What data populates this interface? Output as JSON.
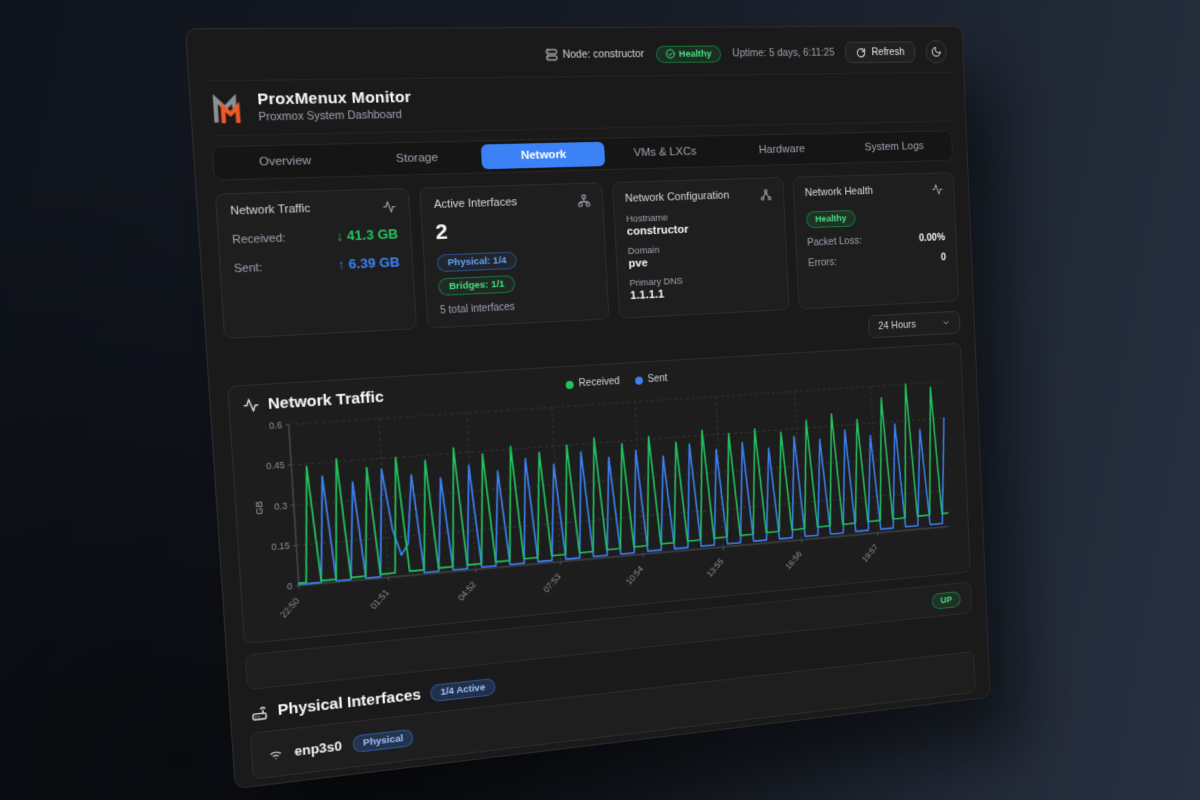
{
  "topbar": {
    "node_label": "Node: constructor",
    "health_badge": "Healthy",
    "uptime": "Uptime: 5 days, 6:11:25",
    "refresh_label": "Refresh"
  },
  "header": {
    "title": "ProxMenux Monitor",
    "subtitle": "Proxmox System Dashboard"
  },
  "tabs": [
    {
      "label": "Overview",
      "active": false
    },
    {
      "label": "Storage",
      "active": false
    },
    {
      "label": "Network",
      "active": true
    },
    {
      "label": "VMs & LXCs",
      "active": false
    },
    {
      "label": "Hardware",
      "active": false
    },
    {
      "label": "System Logs",
      "active": false
    }
  ],
  "cards": {
    "network_traffic": {
      "title": "Network Traffic",
      "received_label": "Received:",
      "received_value": "↓ 41.3 GB",
      "sent_label": "Sent:",
      "sent_value": "↑ 6.39 GB"
    },
    "active_interfaces": {
      "title": "Active Interfaces",
      "count": "2",
      "physical_badge": "Physical: 1/4",
      "bridges_badge": "Bridges: 1/1",
      "total_note": "5 total interfaces"
    },
    "network_configuration": {
      "title": "Network Configuration",
      "hostname_label": "Hostname",
      "hostname": "constructor",
      "domain_label": "Domain",
      "domain": "pve",
      "dns_label": "Primary DNS",
      "dns": "1.1.1.1"
    },
    "network_health": {
      "title": "Network Health",
      "status_badge": "Healthy",
      "packet_loss_label": "Packet Loss:",
      "packet_loss": "0.00%",
      "errors_label": "Errors:",
      "errors": "0"
    }
  },
  "time_range": {
    "selected": "24 Hours"
  },
  "chart_data": {
    "type": "line",
    "title": "Network Traffic",
    "ylabel": "GB",
    "ylim": [
      0,
      0.6
    ],
    "y_ticks": [
      0,
      0.15,
      0.3,
      0.45,
      0.6
    ],
    "x_ticks": [
      {
        "label": "22:50",
        "pos": 0.0
      },
      {
        "label": "01:51",
        "pos": 0.1257
      },
      {
        "label": "04:52",
        "pos": 0.2514
      },
      {
        "label": "07:53",
        "pos": 0.3771
      },
      {
        "label": "10:54",
        "pos": 0.5028
      },
      {
        "label": "13:55",
        "pos": 0.6285
      },
      {
        "label": "16:56",
        "pos": 0.7542
      },
      {
        "label": "19:57",
        "pos": 0.8799
      }
    ],
    "grid": true,
    "legend_position": "top-center",
    "series": [
      {
        "name": "Received",
        "color": "#22c55e",
        "values": [
          0.008,
          0.009,
          0.44,
          0.01,
          0.01,
          0.011,
          0.46,
          0.012,
          0.012,
          0.013,
          0.42,
          0.014,
          0.014,
          0.015,
          0.45,
          0.016,
          0.016,
          0.017,
          0.43,
          0.018,
          0.018,
          0.019,
          0.47,
          0.02,
          0.02,
          0.021,
          0.44,
          0.022,
          0.022,
          0.023,
          0.46,
          0.024,
          0.024,
          0.025,
          0.43,
          0.026,
          0.026,
          0.027,
          0.45,
          0.028,
          0.028,
          0.029,
          0.47,
          0.03,
          0.03,
          0.031,
          0.44,
          0.032,
          0.032,
          0.033,
          0.46,
          0.034,
          0.034,
          0.035,
          0.43,
          0.036,
          0.036,
          0.037,
          0.47,
          0.038,
          0.038,
          0.039,
          0.45,
          0.04,
          0.04,
          0.041,
          0.46,
          0.042,
          0.042,
          0.043,
          0.44,
          0.044,
          0.044,
          0.045,
          0.48,
          0.046,
          0.046,
          0.047,
          0.5,
          0.048,
          0.048,
          0.049,
          0.47,
          0.05,
          0.05,
          0.051,
          0.55,
          0.052,
          0.052,
          0.053,
          0.6,
          0.054,
          0.054,
          0.055,
          0.58,
          0.056,
          0.056
        ]
      },
      {
        "name": "Sent",
        "color": "#3b82f6",
        "values": [
          0.004,
          0.004,
          0.005,
          0.004,
          0.4,
          0.005,
          0.005,
          0.005,
          0.37,
          0.005,
          0.005,
          0.005,
          0.41,
          0.18,
          0.08,
          0.12,
          0.38,
          0.006,
          0.006,
          0.006,
          0.36,
          0.006,
          0.006,
          0.006,
          0.4,
          0.007,
          0.007,
          0.007,
          0.37,
          0.007,
          0.007,
          0.007,
          0.41,
          0.008,
          0.008,
          0.008,
          0.38,
          0.008,
          0.008,
          0.008,
          0.42,
          0.009,
          0.009,
          0.009,
          0.39,
          0.009,
          0.009,
          0.009,
          0.41,
          0.01,
          0.01,
          0.01,
          0.38,
          0.01,
          0.01,
          0.01,
          0.42,
          0.011,
          0.011,
          0.011,
          0.39,
          0.011,
          0.011,
          0.011,
          0.41,
          0.012,
          0.012,
          0.012,
          0.38,
          0.012,
          0.012,
          0.012,
          0.42,
          0.013,
          0.013,
          0.013,
          0.4,
          0.013,
          0.013,
          0.013,
          0.43,
          0.014,
          0.014,
          0.014,
          0.4,
          0.014,
          0.014,
          0.014,
          0.44,
          0.015,
          0.015,
          0.015,
          0.41,
          0.015,
          0.015,
          0.015,
          0.45
        ]
      }
    ]
  },
  "status_row": {
    "up_badge": "UP"
  },
  "physical_interfaces": {
    "title": "Physical Interfaces",
    "active_badge": "1/4 Active",
    "rows": [
      {
        "name": "enp3s0",
        "type_badge": "Physical"
      }
    ]
  }
}
